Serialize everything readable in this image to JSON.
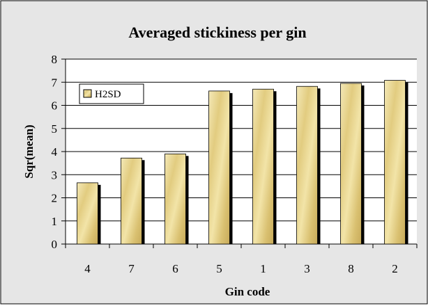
{
  "chart_data": {
    "type": "bar",
    "title": "Averaged stickiness per gin",
    "xlabel": "Gin code",
    "ylabel": "Sqr(mean)",
    "categories": [
      "4",
      "7",
      "6",
      "5",
      "1",
      "3",
      "8",
      "2"
    ],
    "series": [
      {
        "name": "H2SD",
        "values": [
          2.65,
          3.72,
          3.9,
          6.62,
          6.7,
          6.82,
          6.95,
          7.08
        ]
      }
    ],
    "ylim": [
      0,
      8
    ],
    "yticks": [
      "0",
      "1",
      "2",
      "3",
      "4",
      "5",
      "6",
      "7",
      "8"
    ],
    "grid": true,
    "legend_position": "top-left",
    "colors": {
      "background": "#e6e6e6",
      "plot_area": "#ffffff",
      "bar_light": "#f2e6b0",
      "bar_mid": "#e0c97a",
      "bar_dark": "#b89a48",
      "bar_shadow": "#000000",
      "gridline": "#000000"
    }
  }
}
